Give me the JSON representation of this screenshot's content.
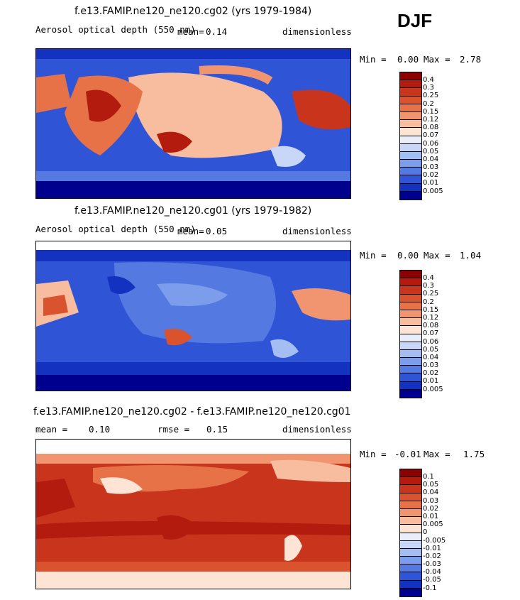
{
  "season": "DJF",
  "panels": [
    {
      "title": "f.e13.FAMIP.ne120_ne120.cg02 (yrs 1979-1984)",
      "variable": "Aerosol optical depth (550 nm)",
      "mean_label": "mean=",
      "mean": "0.14",
      "units": "dimensionless",
      "min_label": "Min =",
      "min": "0.00",
      "max_label": "Max =",
      "max": "2.78",
      "levels": [
        "0.4",
        "0.3",
        "0.25",
        "0.2",
        "0.15",
        "0.12",
        "0.08",
        "0.07",
        "0.06",
        "0.05",
        "0.04",
        "0.03",
        "0.02",
        "0.01",
        "0.005"
      ],
      "colors": [
        "#8b0000",
        "#b31b0f",
        "#c9341d",
        "#d9532f",
        "#e87247",
        "#f09570",
        "#f7bd9e",
        "#fde4d4",
        "#eaeefb",
        "#c8d7f8",
        "#a4bdf2",
        "#7c9deb",
        "#5479e0",
        "#2f55d6",
        "#1432c0",
        "#00008f"
      ]
    },
    {
      "title": "f.e13.FAMIP.ne120_ne120.cg01 (yrs 1979-1982)",
      "variable": "Aerosol optical depth (550 nm)",
      "mean_label": "mean=",
      "mean": "0.05",
      "units": "dimensionless",
      "min_label": "Min =",
      "min": "0.00",
      "max_label": "Max =",
      "max": "1.04",
      "levels": [
        "0.4",
        "0.3",
        "0.25",
        "0.2",
        "0.15",
        "0.12",
        "0.08",
        "0.07",
        "0.06",
        "0.05",
        "0.04",
        "0.03",
        "0.02",
        "0.01",
        "0.005"
      ],
      "colors": [
        "#8b0000",
        "#b31b0f",
        "#c9341d",
        "#d9532f",
        "#e87247",
        "#f09570",
        "#f7bd9e",
        "#fde4d4",
        "#eaeefb",
        "#c8d7f8",
        "#a4bdf2",
        "#7c9deb",
        "#5479e0",
        "#2f55d6",
        "#1432c0",
        "#00008f"
      ]
    },
    {
      "title": "f.e13.FAMIP.ne120_ne120.cg02 - f.e13.FAMIP.ne120_ne120.cg01",
      "mean_label": "mean =",
      "mean": "0.10",
      "rmse_label": "rmse =",
      "rmse": "0.15",
      "units": "dimensionless",
      "min_label": "Min =",
      "min": "-0.01",
      "max_label": "Max =",
      "max": "1.75",
      "levels": [
        "0.1",
        "0.05",
        "0.04",
        "0.03",
        "0.02",
        "0.01",
        "0.005",
        "0",
        "-0.005",
        "-0.01",
        "-0.02",
        "-0.03",
        "-0.04",
        "-0.05",
        "-0.1"
      ],
      "colors": [
        "#8b0000",
        "#b31b0f",
        "#c9341d",
        "#d9532f",
        "#e87247",
        "#f09570",
        "#f7bd9e",
        "#fde4d4",
        "#eaeefb",
        "#c8d7f8",
        "#a4bdf2",
        "#7c9deb",
        "#5479e0",
        "#2f55d6",
        "#1432c0",
        "#00008f"
      ]
    }
  ]
}
